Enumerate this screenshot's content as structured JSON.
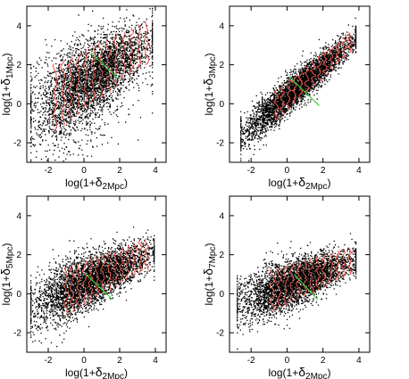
{
  "figure": {
    "background": "#ffffff",
    "colors": {
      "points": "#000000",
      "contours": "#e8574a",
      "fit_line": "#39d33a"
    }
  },
  "chart_data": [
    {
      "type": "scatter",
      "id": "panel-1",
      "xlabel": {
        "base": "log(1+",
        "delta": "δ",
        "sub": "2Mpc",
        "close": ")"
      },
      "ylabel": {
        "base": "log(1+",
        "delta": "δ",
        "sub": "1Mpc",
        "close": ")"
      },
      "xlim": [
        -3.2,
        4.6
      ],
      "ylim": [
        -3.0,
        5.0
      ],
      "xticks": [
        -2,
        0,
        2,
        4
      ],
      "yticks": [
        -2,
        0,
        2,
        4
      ],
      "cloud": {
        "slope": 0.55,
        "intercept": 1.2,
        "spread": 1.2,
        "xmin": -3.0,
        "xmax": 3.8,
        "tail_down": true
      },
      "fit_line": {
        "from": [
          0.4,
          2.6
        ],
        "to": [
          1.9,
          1.3
        ]
      },
      "contour_x_range": [
        -1.6,
        3.5
      ],
      "contour_count": 13
    },
    {
      "type": "scatter",
      "id": "panel-2",
      "xlabel": {
        "base": "log(1+",
        "delta": "δ",
        "sub": "2Mpc",
        "close": ")"
      },
      "ylabel": {
        "base": "log(1+",
        "delta": "δ",
        "sub": "3Mpc",
        "close": ")"
      },
      "xlim": [
        -3.2,
        4.6
      ],
      "ylim": [
        -3.0,
        5.0
      ],
      "xticks": [
        -2,
        0,
        2,
        4
      ],
      "yticks": [
        -2,
        0,
        2,
        4
      ],
      "cloud": {
        "slope": 0.78,
        "intercept": 0.4,
        "spread": 0.55,
        "xmin": -2.6,
        "xmax": 3.8,
        "tail_down": false
      },
      "fit_line": {
        "from": [
          0.1,
          1.4
        ],
        "to": [
          1.8,
          -0.1
        ]
      },
      "contour_x_range": [
        -0.6,
        3.5
      ],
      "contour_count": 13
    },
    {
      "type": "scatter",
      "id": "panel-3",
      "xlabel": {
        "base": "log(1+",
        "delta": "δ",
        "sub": "2Mpc",
        "close": ")"
      },
      "ylabel": {
        "base": "log(1+",
        "delta": "δ",
        "sub": "5Mpc",
        "close": ")"
      },
      "xlim": [
        -3.2,
        4.6
      ],
      "ylim": [
        -3.0,
        5.0
      ],
      "xticks": [
        -2,
        0,
        2,
        4
      ],
      "yticks": [
        -2,
        0,
        2,
        4
      ],
      "cloud": {
        "slope": 0.42,
        "intercept": 0.55,
        "spread": 0.85,
        "xmin": -3.0,
        "xmax": 3.9,
        "tail_down": false
      },
      "fit_line": {
        "from": [
          0.1,
          1.0
        ],
        "to": [
          1.6,
          -0.3
        ]
      },
      "contour_x_range": [
        -1.0,
        3.5
      ],
      "contour_count": 14
    },
    {
      "type": "scatter",
      "id": "panel-4",
      "xlabel": {
        "base": "log(1+",
        "delta": "δ",
        "sub": "2Mpc",
        "close": ")"
      },
      "ylabel": {
        "base": "log(1+",
        "delta": "δ",
        "sub": "7Mpc",
        "close": ")"
      },
      "xlim": [
        -3.2,
        4.6
      ],
      "ylim": [
        -3.0,
        5.0
      ],
      "xticks": [
        -2,
        0,
        2,
        4
      ],
      "yticks": [
        -2,
        0,
        2,
        4
      ],
      "cloud": {
        "slope": 0.35,
        "intercept": 0.45,
        "spread": 0.75,
        "xmin": -2.8,
        "xmax": 3.8,
        "tail_down": false
      },
      "fit_line": {
        "from": [
          0.4,
          1.0
        ],
        "to": [
          1.7,
          -0.3
        ]
      },
      "contour_x_range": [
        -0.8,
        3.5
      ],
      "contour_count": 13
    }
  ]
}
